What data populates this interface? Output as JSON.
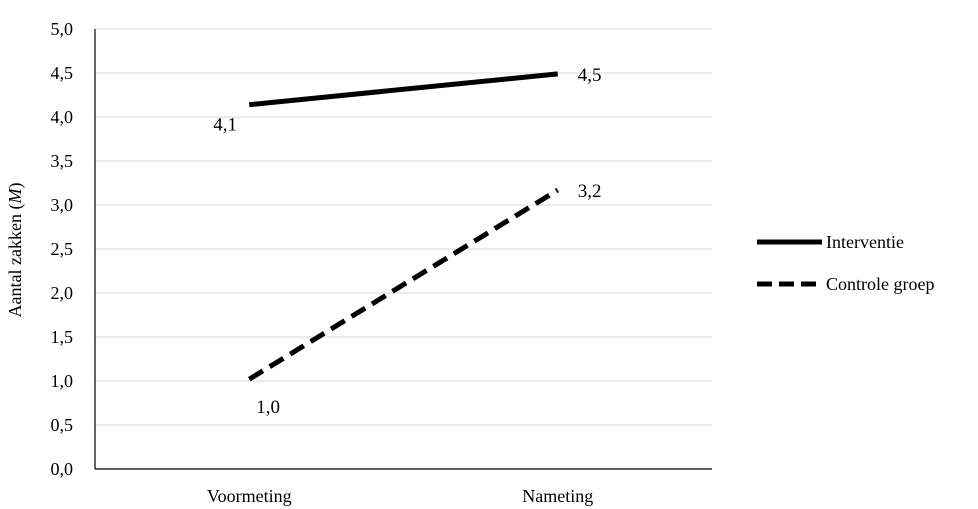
{
  "chart_data": {
    "type": "line",
    "title": "",
    "xlabel": "",
    "ylabel": "Aantal zakken",
    "ylabel_italic_suffix": "M",
    "categories": [
      "Voormeting",
      "Nameting"
    ],
    "ylim": [
      0,
      5
    ],
    "ytick_step": 0.5,
    "yticks": [
      "0,0",
      "0,5",
      "1,0",
      "1,5",
      "2,0",
      "2,5",
      "3,0",
      "3,5",
      "4,0",
      "4,5",
      "5,0"
    ],
    "grid": true,
    "legend_position": "right",
    "series": [
      {
        "name": "Interventie",
        "values": [
          4.14,
          4.49
        ],
        "labels": [
          "4,1",
          "4,5"
        ],
        "style": "solid",
        "color": "#000000"
      },
      {
        "name": "Controle groep",
        "values": [
          1.02,
          3.17
        ],
        "labels": [
          "1,0",
          "3,2"
        ],
        "style": "dashed",
        "color": "#000000"
      }
    ]
  }
}
